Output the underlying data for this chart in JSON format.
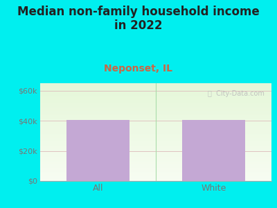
{
  "title": "Median non-family household income\nin 2022",
  "subtitle": "Neponset, IL",
  "categories": [
    "All",
    "White"
  ],
  "values": [
    40500,
    40500
  ],
  "bar_color": "#c4a8d4",
  "outer_bg": "#00EFEF",
  "ylabel_ticks": [
    "$0",
    "$20k",
    "$40k",
    "$60k"
  ],
  "ytick_values": [
    0,
    20000,
    40000,
    60000
  ],
  "ylim": [
    0,
    65000
  ],
  "title_fontsize": 12,
  "subtitle_fontsize": 10,
  "subtitle_color": "#cc6644",
  "title_color": "#222222",
  "tick_color": "#777777",
  "watermark": "ⓘ  City-Data.com",
  "bar_width": 0.55,
  "divider_color": "#aaddaa",
  "grid_color": "#ddbbbb"
}
